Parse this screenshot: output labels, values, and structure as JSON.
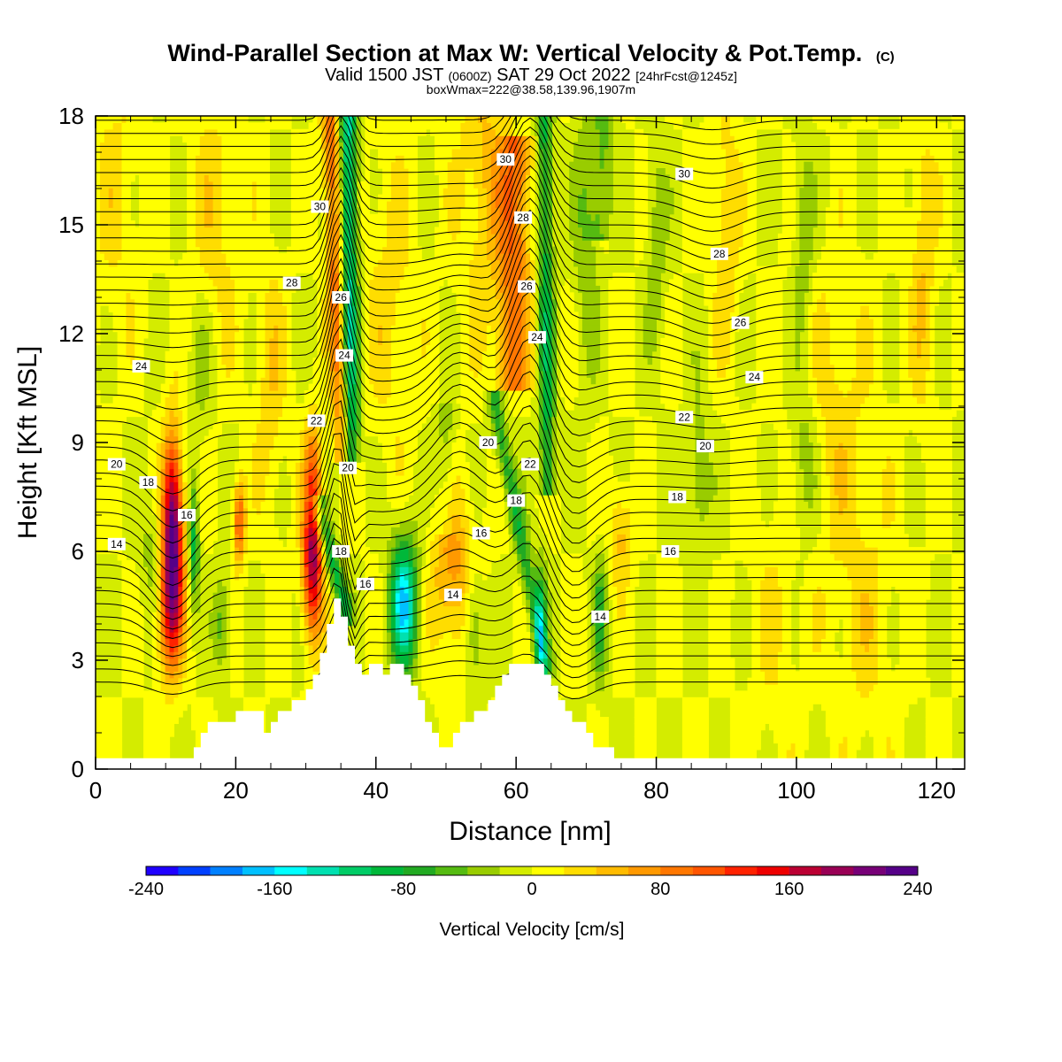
{
  "figure": {
    "title": "Wind-Parallel Section at Max W: Vertical Velocity & Pot.Temp.",
    "copyright": "(C)",
    "subtitle_valid": "Valid 1500 JST",
    "subtitle_z": "(0600Z)",
    "subtitle_date": "SAT 29 Oct 2022",
    "subtitle_fcst": "[24hrFcst@1245z]",
    "subtitle2": "boxWmax=222@38.58,139.96,1907m"
  },
  "chart_data": {
    "type": "heatmap",
    "xlabel": "Distance [nm]",
    "ylabel": "Height [Kft MSL]",
    "xlim": [
      0,
      124
    ],
    "ylim": [
      0,
      18
    ],
    "xticks": [
      0,
      20,
      40,
      60,
      80,
      100,
      120
    ],
    "yticks": [
      0,
      3,
      6,
      9,
      12,
      15,
      18
    ],
    "xtick_labels": [
      "0",
      "20",
      "40",
      "60",
      "80",
      "100",
      "120"
    ],
    "ytick_labels": [
      "0",
      "3",
      "6",
      "9",
      "12",
      "15",
      "18"
    ],
    "colorbar": {
      "title": "Vertical Velocity [cm/s]",
      "min": -240,
      "max": 240,
      "step": 20,
      "tick_values": [
        -240,
        -160,
        -80,
        0,
        80,
        160,
        240
      ],
      "tick_labels": [
        "-240",
        "-160",
        "-80",
        "0",
        "80",
        "160",
        "240"
      ],
      "colors": [
        "#1f00ff",
        "#0040ff",
        "#0080ff",
        "#00c0ff",
        "#00ffff",
        "#00e0b0",
        "#00cc66",
        "#00b83a",
        "#22aa22",
        "#55bb11",
        "#99cc00",
        "#d4ec00",
        "#ffff00",
        "#ffdd00",
        "#ffbb00",
        "#ff9900",
        "#ff7700",
        "#ff5500",
        "#ff2200",
        "#ee0000",
        "#bb0033",
        "#990055",
        "#770077",
        "#550088"
      ]
    },
    "terrain": [
      [
        0,
        0.3
      ],
      [
        14,
        0.3
      ],
      [
        14,
        0.6
      ],
      [
        15,
        0.6
      ],
      [
        15,
        1.0
      ],
      [
        16,
        1.0
      ],
      [
        16,
        1.3
      ],
      [
        20,
        1.3
      ],
      [
        20,
        1.6
      ],
      [
        24,
        1.6
      ],
      [
        24,
        1.0
      ],
      [
        25,
        1.0
      ],
      [
        25,
        1.3
      ],
      [
        26,
        1.3
      ],
      [
        26,
        1.6
      ],
      [
        28,
        1.6
      ],
      [
        28,
        1.9
      ],
      [
        30,
        1.9
      ],
      [
        30,
        2.2
      ],
      [
        31,
        2.2
      ],
      [
        31,
        2.6
      ],
      [
        32,
        2.6
      ],
      [
        32,
        3.2
      ],
      [
        33,
        3.2
      ],
      [
        33,
        4.0
      ],
      [
        34,
        4.0
      ],
      [
        34,
        4.7
      ],
      [
        35,
        4.7
      ],
      [
        35,
        4.2
      ],
      [
        36,
        4.2
      ],
      [
        36,
        3.4
      ],
      [
        37,
        3.4
      ],
      [
        37,
        2.9
      ],
      [
        38,
        2.9
      ],
      [
        38,
        2.6
      ],
      [
        39,
        2.6
      ],
      [
        39,
        2.9
      ],
      [
        41,
        2.9
      ],
      [
        41,
        2.6
      ],
      [
        42,
        2.6
      ],
      [
        42,
        2.9
      ],
      [
        44,
        2.9
      ],
      [
        44,
        2.6
      ],
      [
        45,
        2.6
      ],
      [
        45,
        2.3
      ],
      [
        46,
        2.3
      ],
      [
        46,
        1.9
      ],
      [
        47,
        1.9
      ],
      [
        47,
        1.3
      ],
      [
        48,
        1.3
      ],
      [
        48,
        1.0
      ],
      [
        49,
        1.0
      ],
      [
        49,
        0.6
      ],
      [
        51,
        0.6
      ],
      [
        51,
        1.0
      ],
      [
        52,
        1.0
      ],
      [
        52,
        1.3
      ],
      [
        54,
        1.3
      ],
      [
        54,
        1.6
      ],
      [
        56,
        1.6
      ],
      [
        56,
        1.9
      ],
      [
        57,
        1.9
      ],
      [
        57,
        2.3
      ],
      [
        58,
        2.3
      ],
      [
        58,
        2.6
      ],
      [
        59,
        2.6
      ],
      [
        59,
        2.9
      ],
      [
        64,
        2.9
      ],
      [
        64,
        2.6
      ],
      [
        65,
        2.6
      ],
      [
        65,
        2.3
      ],
      [
        66,
        2.3
      ],
      [
        66,
        1.9
      ],
      [
        67,
        1.9
      ],
      [
        67,
        1.6
      ],
      [
        68,
        1.6
      ],
      [
        68,
        1.3
      ],
      [
        70,
        1.3
      ],
      [
        70,
        1.0
      ],
      [
        71,
        1.0
      ],
      [
        71,
        0.6
      ],
      [
        74,
        0.6
      ],
      [
        74,
        0.3
      ],
      [
        124,
        0.3
      ]
    ],
    "w_features": [
      {
        "x": 11,
        "y": 6.5,
        "value": 220
      },
      {
        "x": 31,
        "y": 5.5,
        "value": 180
      },
      {
        "x": 35,
        "y": 16,
        "value": -120
      },
      {
        "x": 44,
        "y": 4.5,
        "value": -160
      },
      {
        "x": 51,
        "y": 5.5,
        "value": 70
      },
      {
        "x": 61,
        "y": 14,
        "value": 80
      },
      {
        "x": 65,
        "y": 17,
        "value": -80
      },
      {
        "x": 72,
        "y": 4,
        "value": -60
      }
    ],
    "theta_contour_labels": [
      {
        "value": "14",
        "x": 3,
        "y": 6.2
      },
      {
        "value": "18",
        "x": 7.5,
        "y": 7.9
      },
      {
        "value": "20",
        "x": 3,
        "y": 8.4
      },
      {
        "value": "16",
        "x": 13,
        "y": 7.0
      },
      {
        "value": "24",
        "x": 6.5,
        "y": 11.1
      },
      {
        "value": "28",
        "x": 28,
        "y": 13.4
      },
      {
        "value": "30",
        "x": 32,
        "y": 15.5
      },
      {
        "value": "26",
        "x": 35,
        "y": 13.0
      },
      {
        "value": "24",
        "x": 35.5,
        "y": 11.4
      },
      {
        "value": "22",
        "x": 31.5,
        "y": 9.6
      },
      {
        "value": "20",
        "x": 36,
        "y": 8.3
      },
      {
        "value": "18",
        "x": 35,
        "y": 6.0
      },
      {
        "value": "16",
        "x": 38.5,
        "y": 5.1
      },
      {
        "value": "14",
        "x": 51,
        "y": 4.8
      },
      {
        "value": "16",
        "x": 55,
        "y": 6.5
      },
      {
        "value": "20",
        "x": 56,
        "y": 9.0
      },
      {
        "value": "22",
        "x": 62,
        "y": 8.4
      },
      {
        "value": "18",
        "x": 60,
        "y": 7.4
      },
      {
        "value": "30",
        "x": 58.5,
        "y": 16.8
      },
      {
        "value": "28",
        "x": 61,
        "y": 15.2
      },
      {
        "value": "26",
        "x": 61.5,
        "y": 13.3
      },
      {
        "value": "24",
        "x": 63,
        "y": 11.9
      },
      {
        "value": "14",
        "x": 72,
        "y": 4.2
      },
      {
        "value": "30",
        "x": 84,
        "y": 16.4
      },
      {
        "value": "28",
        "x": 89,
        "y": 14.2
      },
      {
        "value": "26",
        "x": 92,
        "y": 12.3
      },
      {
        "value": "24",
        "x": 94,
        "y": 10.8
      },
      {
        "value": "22",
        "x": 84,
        "y": 9.7
      },
      {
        "value": "20",
        "x": 87,
        "y": 8.9
      },
      {
        "value": "18",
        "x": 83,
        "y": 7.5
      },
      {
        "value": "16",
        "x": 82,
        "y": 6.0
      }
    ]
  }
}
